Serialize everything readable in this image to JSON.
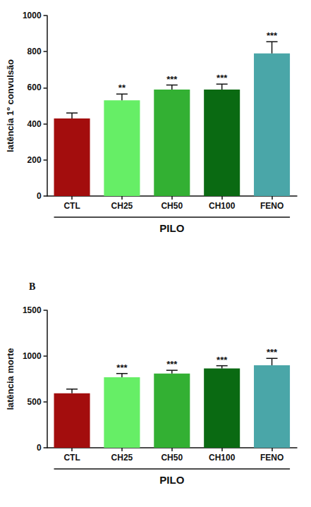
{
  "chart_data": [
    {
      "type": "bar",
      "y_label": "latência 1º convulsão",
      "categories": [
        "CTL",
        "CH25",
        "CH50",
        "CH100",
        "FENO"
      ],
      "values": [
        430,
        530,
        590,
        590,
        790
      ],
      "errors": [
        30,
        35,
        25,
        30,
        65
      ],
      "significance": [
        null,
        "**",
        "***",
        "***",
        "***"
      ],
      "group_label": "PILO",
      "colors": [
        "#a30d0d",
        "#66ee66",
        "#33b033",
        "#0a6a12",
        "#4aa6a8"
      ],
      "ylim": [
        0,
        1000
      ],
      "yticks": [
        0,
        200,
        400,
        600,
        800,
        1000
      ],
      "grid": false
    },
    {
      "type": "bar",
      "title": "B",
      "y_label": "latência morte",
      "categories": [
        "CTL",
        "CH25",
        "CH50",
        "CH100",
        "FENO"
      ],
      "values": [
        595,
        770,
        810,
        865,
        900
      ],
      "errors": [
        45,
        40,
        35,
        30,
        75
      ],
      "significance": [
        null,
        "***",
        "***",
        "***",
        "***"
      ],
      "group_label": "PILO",
      "colors": [
        "#a30d0d",
        "#66ee66",
        "#33b033",
        "#0a6a12",
        "#4aa6a8"
      ],
      "ylim": [
        0,
        1500
      ],
      "yticks": [
        0,
        500,
        1000,
        1500
      ],
      "grid": false
    }
  ]
}
